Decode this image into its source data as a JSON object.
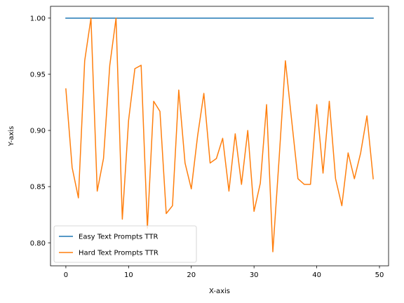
{
  "chart_data": {
    "type": "line",
    "xlabel": "X-axis",
    "ylabel": "Y-axis",
    "xlim": [
      -2.45,
      51.45
    ],
    "ylim": [
      0.7795,
      1.0105
    ],
    "xticks": [
      0,
      10,
      20,
      30,
      40,
      50
    ],
    "xtick_labels": [
      "0",
      "10",
      "20",
      "30",
      "40",
      "50"
    ],
    "yticks": [
      0.8,
      0.85,
      0.9,
      0.95,
      1.0
    ],
    "ytick_labels": [
      "0.80",
      "0.85",
      "0.90",
      "0.95",
      "1.00"
    ],
    "grid": false,
    "legend_position": "lower-left",
    "x": [
      0,
      1,
      2,
      3,
      4,
      5,
      6,
      7,
      8,
      9,
      10,
      11,
      12,
      13,
      14,
      15,
      16,
      17,
      18,
      19,
      20,
      21,
      22,
      23,
      24,
      25,
      26,
      27,
      28,
      29,
      30,
      31,
      32,
      33,
      34,
      35,
      36,
      37,
      38,
      39,
      40,
      41,
      42,
      43,
      44,
      45,
      46,
      47,
      48,
      49
    ],
    "series": [
      {
        "name": "Easy Text Prompts TTR",
        "color": "#1f77b4",
        "values": [
          1,
          1,
          1,
          1,
          1,
          1,
          1,
          1,
          1,
          1,
          1,
          1,
          1,
          1,
          1,
          1,
          1,
          1,
          1,
          1,
          1,
          1,
          1,
          1,
          1,
          1,
          1,
          1,
          1,
          1,
          1,
          1,
          1,
          1,
          1,
          1,
          1,
          1,
          1,
          1,
          1,
          1,
          1,
          1,
          1,
          1,
          1,
          1,
          1,
          1
        ]
      },
      {
        "name": "Hard Text Prompts TTR",
        "color": "#ff7f0e",
        "values": [
          0.937,
          0.867,
          0.84,
          0.962,
          1.0,
          0.846,
          0.875,
          0.958,
          1.0,
          0.821,
          0.909,
          0.955,
          0.958,
          0.813,
          0.926,
          0.917,
          0.826,
          0.833,
          0.936,
          0.871,
          0.848,
          0.895,
          0.933,
          0.871,
          0.875,
          0.893,
          0.846,
          0.897,
          0.852,
          0.9,
          0.828,
          0.853,
          0.923,
          0.792,
          0.875,
          0.962,
          0.909,
          0.857,
          0.852,
          0.852,
          0.923,
          0.862,
          0.926,
          0.857,
          0.833,
          0.88,
          0.857,
          0.88,
          0.913,
          0.857
        ]
      }
    ]
  }
}
